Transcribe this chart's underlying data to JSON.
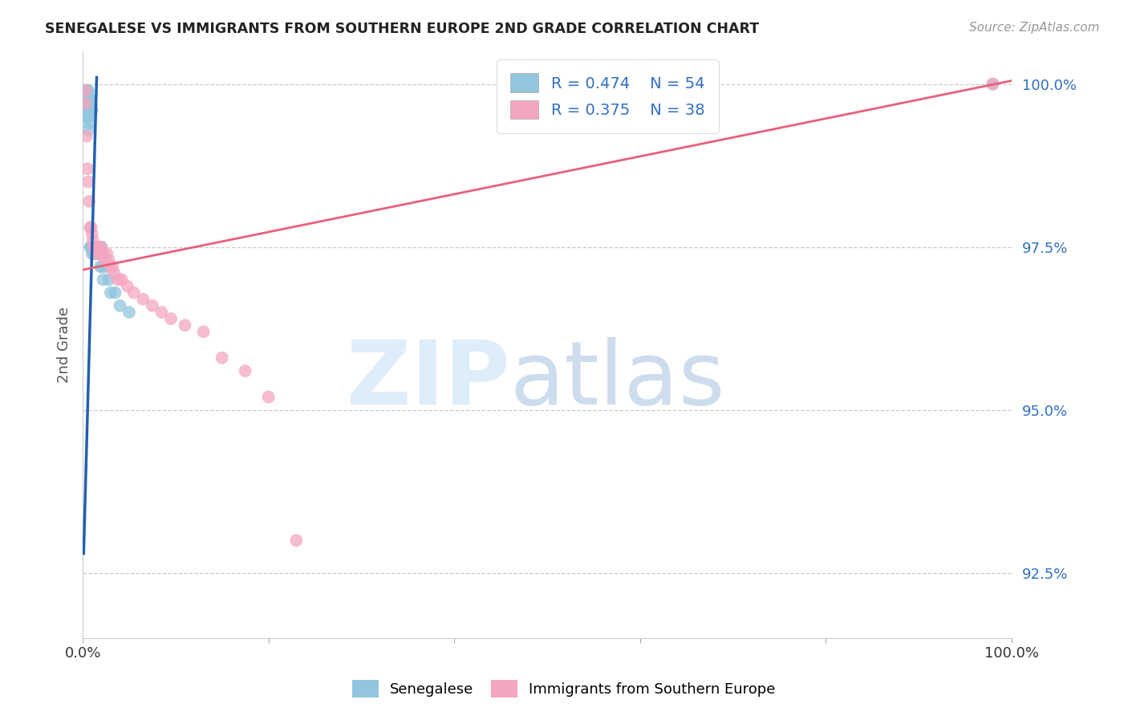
{
  "title": "SENEGALESE VS IMMIGRANTS FROM SOUTHERN EUROPE 2ND GRADE CORRELATION CHART",
  "source": "Source: ZipAtlas.com",
  "ylabel": "2nd Grade",
  "xlim": [
    0.0,
    1.0
  ],
  "ylim": [
    0.915,
    1.005
  ],
  "yticks": [
    0.925,
    0.95,
    0.975,
    1.0
  ],
  "ytick_labels": [
    "92.5%",
    "95.0%",
    "97.5%",
    "100.0%"
  ],
  "xticks": [
    0.0,
    0.2,
    0.4,
    0.6,
    0.8,
    1.0
  ],
  "xtick_labels": [
    "0.0%",
    "",
    "",
    "",
    "",
    "100.0%"
  ],
  "legend_blue_r": "R = 0.474",
  "legend_blue_n": "N = 54",
  "legend_pink_r": "R = 0.375",
  "legend_pink_n": "N = 38",
  "blue_color": "#92c5de",
  "pink_color": "#f4a6c0",
  "blue_line_color": "#2060b0",
  "pink_line_color": "#e8607a",
  "legend_text_color": "#3070c0",
  "blue_scatter_x": [
    0.002,
    0.002,
    0.003,
    0.003,
    0.003,
    0.003,
    0.004,
    0.004,
    0.004,
    0.004,
    0.004,
    0.005,
    0.005,
    0.005,
    0.005,
    0.005,
    0.006,
    0.006,
    0.006,
    0.006,
    0.006,
    0.006,
    0.007,
    0.007,
    0.007,
    0.007,
    0.008,
    0.008,
    0.008,
    0.009,
    0.009,
    0.01,
    0.01,
    0.01,
    0.011,
    0.012,
    0.012,
    0.013,
    0.014,
    0.015,
    0.016,
    0.017,
    0.018,
    0.019,
    0.02,
    0.021,
    0.022,
    0.025,
    0.028,
    0.03,
    0.035,
    0.04,
    0.05,
    0.98
  ],
  "blue_scatter_y": [
    0.999,
    0.998,
    0.999,
    0.998,
    0.997,
    0.996,
    0.999,
    0.998,
    0.997,
    0.996,
    0.995,
    0.999,
    0.998,
    0.997,
    0.996,
    0.995,
    0.999,
    0.998,
    0.997,
    0.996,
    0.995,
    0.993,
    0.998,
    0.997,
    0.996,
    0.994,
    0.997,
    0.996,
    0.975,
    0.996,
    0.975,
    0.996,
    0.975,
    0.974,
    0.975,
    0.975,
    0.974,
    0.975,
    0.974,
    0.975,
    0.974,
    0.975,
    0.974,
    0.972,
    0.975,
    0.972,
    0.97,
    0.972,
    0.97,
    0.968,
    0.968,
    0.966,
    0.965,
    1.0
  ],
  "pink_scatter_x": [
    0.003,
    0.003,
    0.004,
    0.005,
    0.006,
    0.007,
    0.008,
    0.009,
    0.01,
    0.011,
    0.012,
    0.013,
    0.014,
    0.016,
    0.018,
    0.02,
    0.022,
    0.024,
    0.026,
    0.028,
    0.03,
    0.032,
    0.034,
    0.038,
    0.042,
    0.048,
    0.055,
    0.065,
    0.075,
    0.085,
    0.095,
    0.11,
    0.13,
    0.15,
    0.175,
    0.2,
    0.23,
    0.98
  ],
  "pink_scatter_y": [
    0.999,
    0.997,
    0.992,
    0.987,
    0.985,
    0.982,
    0.978,
    0.978,
    0.977,
    0.976,
    0.975,
    0.975,
    0.974,
    0.975,
    0.974,
    0.975,
    0.974,
    0.973,
    0.974,
    0.973,
    0.972,
    0.972,
    0.971,
    0.97,
    0.97,
    0.969,
    0.968,
    0.967,
    0.966,
    0.965,
    0.964,
    0.963,
    0.962,
    0.958,
    0.956,
    0.952,
    0.93,
    1.0
  ],
  "blue_line_x_start": 0.001,
  "blue_line_x_end": 0.015,
  "blue_line_y_start": 0.928,
  "blue_line_y_end": 1.001,
  "pink_line_x_start": 0.0,
  "pink_line_x_end": 1.0,
  "pink_line_y_start": 0.9715,
  "pink_line_y_end": 1.0005
}
